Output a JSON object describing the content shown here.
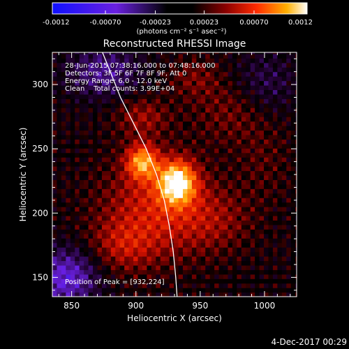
{
  "chart_data": {
    "type": "heatmap",
    "title": "Reconstructed RHESSI Image",
    "xlabel": "Heliocentric X (arcsec)",
    "ylabel": "Heliocentric Y (arcsec)",
    "xlim": [
      835,
      1025
    ],
    "ylim": [
      135,
      325
    ],
    "x_ticks": [
      "850",
      "900",
      "950",
      "1000"
    ],
    "y_ticks": [
      "150",
      "200",
      "250",
      "300"
    ],
    "colorbar": {
      "min": -0.0012,
      "max": 0.0012,
      "tick_labels": [
        "-0.0012",
        "-0.00070",
        "-0.00023",
        "0.00023",
        "0.00070",
        "0.0012"
      ],
      "units": "(photons cm⁻² s⁻¹ asec⁻²)"
    },
    "annotations": {
      "time": "28-Jun-2015 07:38:16.000 to 07:48:16.000",
      "detectors": "Detectors: 3F 5F 6F 7F 8F 9F, Att 0",
      "energy": "Energy Range: 6.0 - 12.0 keV",
      "clean": "Clean    Total counts: 3.99E+04",
      "peak": "Position of Peak = [932,224]"
    },
    "peak": {
      "x": 932,
      "y": 224
    },
    "sources": [
      {
        "x": 932,
        "y": 224,
        "rx": 14,
        "ry": 16,
        "amp": 0.00115
      },
      {
        "x": 905,
        "y": 240,
        "rx": 12,
        "ry": 13,
        "amp": 0.00085
      },
      {
        "x": 915,
        "y": 205,
        "rx": 40,
        "ry": 38,
        "amp": 0.00045
      },
      {
        "x": 890,
        "y": 175,
        "rx": 25,
        "ry": 20,
        "amp": 0.0003
      },
      {
        "x": 960,
        "y": 195,
        "rx": 30,
        "ry": 25,
        "amp": 0.00025
      },
      {
        "x": 975,
        "y": 280,
        "rx": 30,
        "ry": 25,
        "amp": 0.00022
      },
      {
        "x": 945,
        "y": 305,
        "rx": 20,
        "ry": 15,
        "amp": 0.0002
      },
      {
        "x": 905,
        "y": 275,
        "rx": 20,
        "ry": 15,
        "amp": 0.0003
      },
      {
        "x": 1000,
        "y": 240,
        "rx": 20,
        "ry": 30,
        "amp": 0.00012
      }
    ],
    "negatives": [
      {
        "x": 845,
        "y": 150,
        "rx": 25,
        "ry": 22,
        "amp": -0.0006
      },
      {
        "x": 875,
        "y": 310,
        "rx": 28,
        "ry": 20,
        "amp": -0.0004
      },
      {
        "x": 1000,
        "y": 300,
        "rx": 25,
        "ry": 25,
        "amp": -0.00025
      }
    ],
    "limb": [
      [
        874,
        325
      ],
      [
        880,
        310
      ],
      [
        888,
        290
      ],
      [
        898,
        270
      ],
      [
        908,
        250
      ],
      [
        916,
        230
      ],
      [
        922,
        210
      ],
      [
        926,
        190
      ],
      [
        929,
        170
      ],
      [
        931,
        150
      ],
      [
        932,
        135
      ]
    ]
  },
  "footer": {
    "date": "4-Dec-2017 00:29"
  },
  "colors": {
    "background": "#000000",
    "limb": "#ffffff"
  }
}
